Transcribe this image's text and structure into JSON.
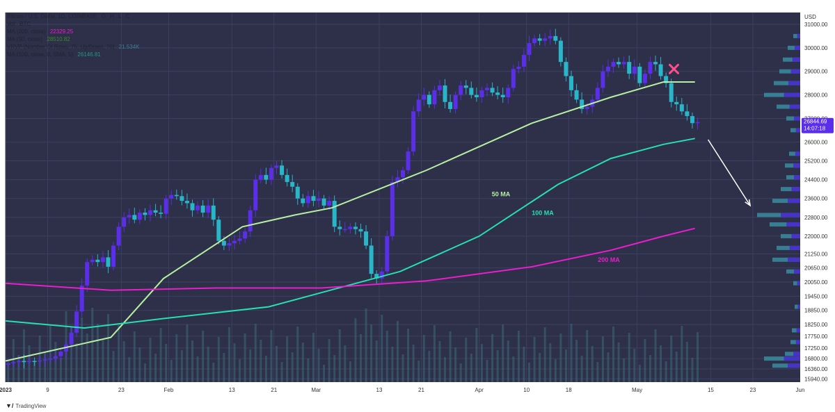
{
  "legend": {
    "title": "Bitcoin / U.S. Dollar, 1D, COINBASE",
    "ohlc_labels": [
      "O",
      "H",
      "L",
      "C"
    ],
    "vol_label": "Vol · BTC",
    "ma200_label": "MA (200, close)",
    "ma200_value": "22329.25",
    "ma50_label": "MA (50, close)",
    "ma50_value": "28510.82",
    "vrvp_label": "VRVP (Number Of Rows, 75, Up/Down, 70)",
    "vrvp_value": "21.534K",
    "ma100_label": "MA (100, close, 0, SMA, 5)",
    "ma100_value": "26146.81"
  },
  "price_axis": {
    "currency": "USD",
    "ticks": [
      "31000.00",
      "30000.00",
      "29000.00",
      "28000.00",
      "27000.00",
      "26000.00",
      "25200.00",
      "24400.00",
      "23600.00",
      "22800.00",
      "22000.00",
      "21250.00",
      "20650.00",
      "20050.00",
      "19450.00",
      "18850.00",
      "18250.00",
      "17750.00",
      "17250.00",
      "16800.00",
      "16360.00",
      "15940.00"
    ],
    "last_price": "26844.69",
    "countdown": "14:07:18"
  },
  "time_axis": {
    "ticks": [
      "2023",
      "9",
      "23",
      "Feb",
      "13",
      "21",
      "Mar",
      "13",
      "21",
      "Apr",
      "10",
      "18",
      "May",
      "15",
      "23",
      "Jun"
    ]
  },
  "annotations": {
    "ma50": "50 MA",
    "ma100": "100 MA",
    "ma200": "200 MA"
  },
  "footer": {
    "brand": "TradingView"
  },
  "colors": {
    "background": "#2e2f48",
    "grid": "#3d4060",
    "candle_up": "#5b2eea",
    "candle_down": "#29b6c9",
    "ma50": "#b6f0a2",
    "ma100": "#27e0b2",
    "ma200": "#e91ecd",
    "x_mark": "#ff4f8a",
    "arrow": "#ffffff",
    "last_price_tag": "#5b2eea"
  },
  "chart_data": {
    "type": "candlestick",
    "symbol": "Bitcoin / U.S. Dollar",
    "interval": "1D",
    "ylim": [
      15800,
      31500
    ],
    "x_range": [
      "2023-01-01",
      "2023-06-01"
    ],
    "series": [
      {
        "name": "MA (50, close)",
        "points": [
          [
            0,
            16700
          ],
          [
            20,
            17700
          ],
          [
            30,
            20200
          ],
          [
            45,
            22400
          ],
          [
            55,
            22900
          ],
          [
            62,
            23200
          ],
          [
            80,
            24800
          ],
          [
            100,
            26800
          ],
          [
            115,
            27900
          ],
          [
            125,
            28550
          ],
          [
            131,
            28550
          ]
        ]
      },
      {
        "name": "MA (100, close, 0, SMA, 5)",
        "points": [
          [
            0,
            18400
          ],
          [
            15,
            18100
          ],
          [
            30,
            18500
          ],
          [
            50,
            19000
          ],
          [
            60,
            19600
          ],
          [
            75,
            20500
          ],
          [
            90,
            22000
          ],
          [
            105,
            24200
          ],
          [
            115,
            25300
          ],
          [
            125,
            25900
          ],
          [
            131,
            26150
          ]
        ]
      },
      {
        "name": "MA (200, close)",
        "points": [
          [
            0,
            20000
          ],
          [
            20,
            19700
          ],
          [
            40,
            19800
          ],
          [
            60,
            19800
          ],
          [
            80,
            20100
          ],
          [
            100,
            20700
          ],
          [
            115,
            21400
          ],
          [
            125,
            22000
          ],
          [
            131,
            22330
          ]
        ]
      }
    ],
    "candles_close": [
      16600,
      16650,
      16700,
      16650,
      16700,
      16680,
      16720,
      16760,
      16800,
      16900,
      17100,
      17400,
      17900,
      18800,
      19900,
      20900,
      21000,
      20900,
      21100,
      20700,
      21600,
      22400,
      22800,
      22900,
      22700,
      23000,
      22900,
      23100,
      23000,
      22950,
      23600,
      23750,
      23700,
      23500,
      23400,
      23100,
      23300,
      23000,
      23300,
      22700,
      21800,
      21600,
      21700,
      21800,
      21900,
      22200,
      23100,
      24400,
      24600,
      24400,
      24900,
      25000,
      24600,
      24300,
      24100,
      23600,
      23400,
      23700,
      23500,
      23600,
      23300,
      23500,
      22400,
      22300,
      22300,
      22400,
      22300,
      22200,
      21600,
      20400,
      20200,
      20500,
      22000,
      24300,
      24500,
      24800,
      25600,
      27300,
      27800,
      28000,
      27600,
      28200,
      28400,
      27700,
      27400,
      28000,
      28400,
      28300,
      28000,
      27900,
      28200,
      28300,
      28100,
      28000,
      27900,
      28300,
      29100,
      29200,
      29700,
      30200,
      30400,
      30300,
      30400,
      30500,
      30300,
      29400,
      28800,
      28200,
      27800,
      27400,
      27500,
      27800,
      28300,
      29000,
      29200,
      29400,
      29300,
      29400,
      28900,
      29200,
      28500,
      28900,
      29400,
      29300,
      28800,
      28500,
      27700,
      27600,
      27300,
      27100,
      26800,
      26845
    ]
  }
}
